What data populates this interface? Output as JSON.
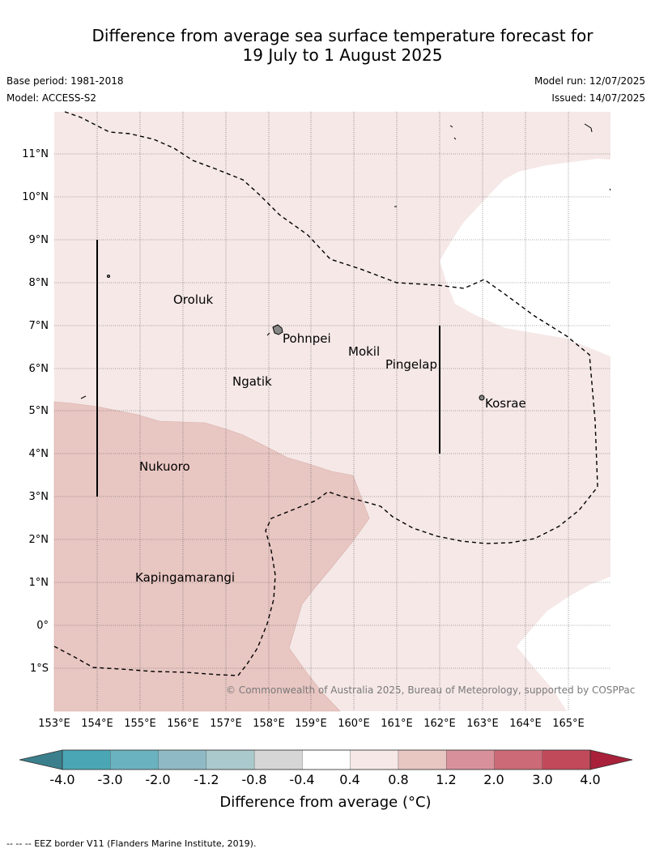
{
  "title": {
    "line1": "Difference from average sea surface temperature forecast for",
    "line2": "19 July to 1 August 2025"
  },
  "meta": {
    "base_period": "Base period: 1981-2018",
    "model": "Model: ACCESS-S2",
    "model_run": "Model run: 12/07/2025",
    "issued": "Issued: 14/07/2025"
  },
  "map": {
    "lon_labels": [
      "153°E",
      "154°E",
      "155°E",
      "156°E",
      "157°E",
      "158°E",
      "159°E",
      "160°E",
      "161°E",
      "162°E",
      "163°E",
      "164°E",
      "165°E"
    ],
    "lat_labels": [
      "11°N",
      "10°N",
      "9°N",
      "8°N",
      "7°N",
      "6°N",
      "5°N",
      "4°N",
      "3°N",
      "2°N",
      "1°N",
      "0°",
      "1°S"
    ],
    "places": [
      {
        "name": "Oroluk"
      },
      {
        "name": "Pohnpei"
      },
      {
        "name": "Mokil"
      },
      {
        "name": "Pingelap"
      },
      {
        "name": "Ngatik"
      },
      {
        "name": "Kosrae"
      },
      {
        "name": "Nukuoro"
      },
      {
        "name": "Kapingamarangi"
      }
    ],
    "colors": {
      "band_0_4_to_0_8": "#f5e8e7",
      "band_0_8_to_1_2": "#e8c6c2",
      "band_neg0_4_to_0_4": "#ffffff"
    },
    "copyright": "© Commonwealth of Australia 2025, Bureau of Meteorology, supported by COSPPac"
  },
  "colorbar": {
    "ticks": [
      "-4.0",
      "-3.0",
      "-2.0",
      "-1.2",
      "-0.8",
      "-0.4",
      "0.4",
      "0.8",
      "1.2",
      "2.0",
      "3.0",
      "4.0"
    ],
    "colors": [
      "#4aa6b5",
      "#6bb2c0",
      "#8fbac5",
      "#aac9cd",
      "#d6d6d6",
      "#ffffff",
      "#f5e8e7",
      "#e8c6c2",
      "#d8919a",
      "#cc6a78",
      "#c04a5a"
    ],
    "under_color": "#3b7f8c",
    "over_color": "#a8203a",
    "label": "Difference from average (°C)"
  },
  "footer": "--  --  -- EEZ border V11 (Flanders Marine Institute, 2019)."
}
